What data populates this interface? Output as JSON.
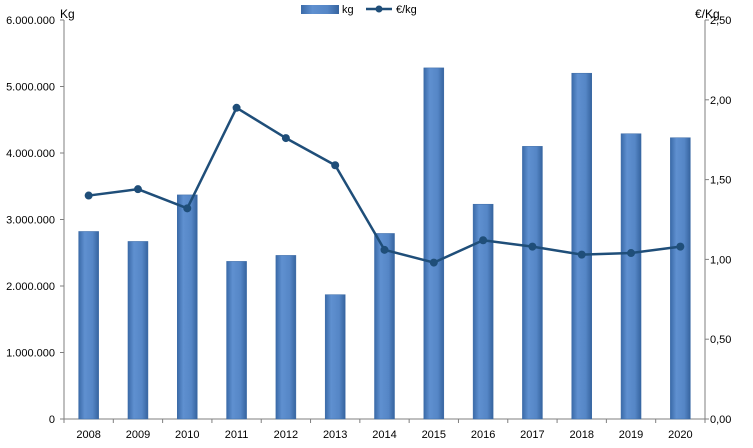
{
  "chart_data": {
    "type": "bar",
    "categories": [
      "2008",
      "2009",
      "2010",
      "2011",
      "2012",
      "2013",
      "2014",
      "2015",
      "2016",
      "2017",
      "2018",
      "2019",
      "2020"
    ],
    "series": [
      {
        "name": "kg",
        "type": "bar",
        "axis": "left",
        "color": "#4f81bd",
        "values": [
          2820000,
          2670000,
          3370000,
          2370000,
          2460000,
          1870000,
          2790000,
          5280000,
          3230000,
          4100000,
          5200000,
          4290000,
          4230000
        ]
      },
      {
        "name": "€/kg",
        "type": "line",
        "axis": "right",
        "color": "#1f4e79",
        "values": [
          1.4,
          1.44,
          1.32,
          1.95,
          1.76,
          1.59,
          1.06,
          0.98,
          1.12,
          1.08,
          1.03,
          1.04,
          1.08
        ]
      }
    ],
    "ylabel_left": "Kg",
    "ylabel_right": "€/Kg",
    "ylim_left": [
      0,
      6000000
    ],
    "ylim_right": [
      0,
      2.5
    ],
    "yticks_left": [
      "0",
      "1.000.000",
      "2.000.000",
      "3.000.000",
      "4.000.000",
      "5.000.000",
      "6.000.000"
    ],
    "yticks_right": [
      "0,00",
      "0,50",
      "1,00",
      "1,50",
      "2,00",
      "2,50"
    ],
    "grid": false,
    "legend_position": "top"
  }
}
